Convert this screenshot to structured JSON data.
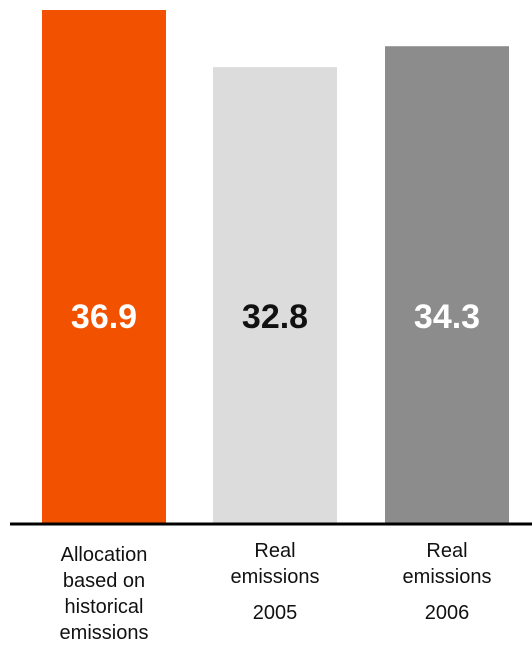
{
  "chart_data": {
    "type": "bar",
    "categories": [
      [
        "Allocation",
        "based on",
        "historical",
        "emissions"
      ],
      [
        "Real",
        "emissions"
      ],
      [
        "Real",
        "emissions"
      ]
    ],
    "category_years": [
      "",
      "2005",
      "2006"
    ],
    "values": [
      36.9,
      32.8,
      34.3
    ],
    "value_labels": [
      "36.9",
      "32.8",
      "34.3"
    ],
    "colors": [
      "#F25100",
      "#DCDCDC",
      "#8C8C8C"
    ],
    "label_colors": [
      "#FFFFFF",
      "#111111",
      "#FFFFFF"
    ],
    "title": "",
    "xlabel": "",
    "ylabel": "",
    "ylim": [
      0,
      36.9
    ]
  }
}
